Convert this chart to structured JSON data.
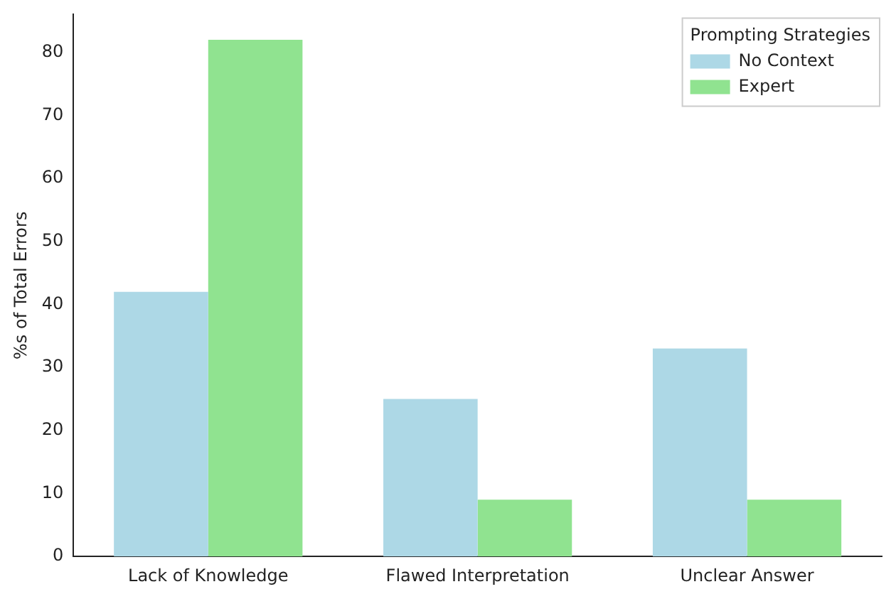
{
  "chart_data": {
    "type": "bar",
    "ylabel": "%s of Total Errors",
    "categories": [
      "Lack of Knowledge",
      "Flawed Interpretation",
      "Unclear Answer"
    ],
    "series": [
      {
        "name": "No Context",
        "color": "#add8e6",
        "values": [
          42,
          25,
          33
        ]
      },
      {
        "name": "Expert",
        "color": "#90e390",
        "values": [
          82,
          9,
          9
        ]
      }
    ],
    "ylim": [
      0,
      86
    ],
    "yticks": [
      0,
      10,
      20,
      30,
      40,
      50,
      60,
      70,
      80
    ],
    "grid": false,
    "legend": "top right",
    "legend_title": "Prompting Strategies"
  }
}
